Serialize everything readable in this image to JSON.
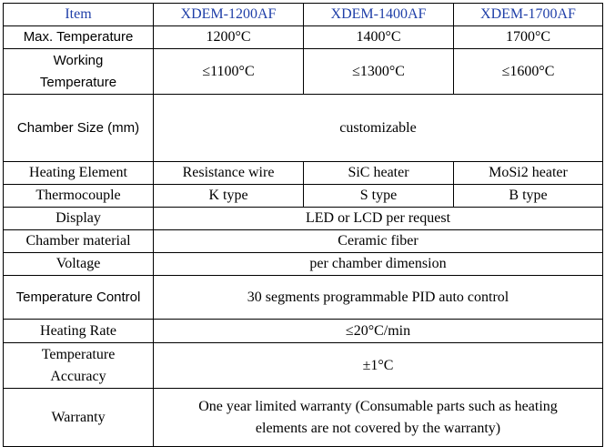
{
  "header": {
    "item": "Item",
    "models": [
      "XDEM-1200AF",
      "XDEM-1400AF",
      "XDEM-1700AF"
    ]
  },
  "rows": {
    "max_temp": {
      "label": "Max. Temperature",
      "values": [
        "1200°C",
        "1400°C",
        "1700°C"
      ]
    },
    "working_temp": {
      "label_line1": "Working",
      "label_line2": "Temperature",
      "values": [
        "≤1100°C",
        "≤1300°C",
        "≤1600°C"
      ]
    },
    "chamber_size": {
      "label": "Chamber Size (mm)",
      "value": "customizable"
    },
    "heating_element": {
      "label": "Heating Element",
      "values": [
        "Resistance wire",
        "SiC heater",
        "MoSi2 heater"
      ]
    },
    "thermocouple": {
      "label": "Thermocouple",
      "values": [
        "K type",
        "S type",
        "B type"
      ]
    },
    "display": {
      "label": "Display",
      "value": "LED or LCD per request"
    },
    "chamber_material": {
      "label": "Chamber material",
      "value": "Ceramic fiber"
    },
    "voltage": {
      "label": "Voltage",
      "value": "per chamber dimension"
    },
    "temp_control": {
      "label": "Temperature Control",
      "value": "30 segments programmable PID auto control"
    },
    "heating_rate": {
      "label": "Heating Rate",
      "value": "≤20°C/min"
    },
    "temp_accuracy": {
      "label_line1": "Temperature",
      "label_line2": "Accuracy",
      "value": "±1°C"
    },
    "warranty": {
      "label": "Warranty",
      "value_line1": "One year limited warranty (Consumable parts such as heating",
      "value_line2": "elements are not covered by the warranty)"
    }
  }
}
